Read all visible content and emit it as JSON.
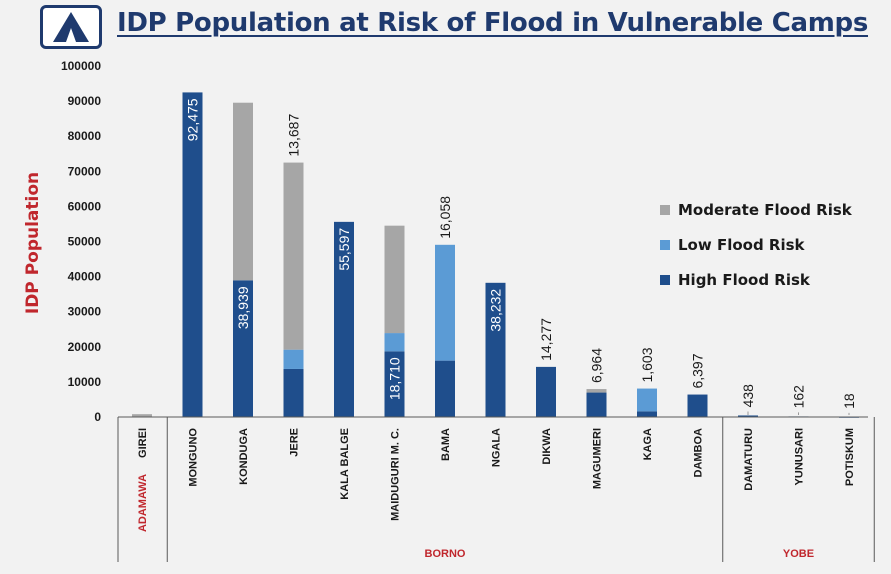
{
  "header": {
    "title": "IDP Population at Risk of Flood in Vulnerable Camps",
    "logo_icon": "tent-icon"
  },
  "chart_data": {
    "type": "bar",
    "stacked": true,
    "title": "IDP Population at Risk of Flood in Vulnerable Camps",
    "ylabel": "IDP Population",
    "xlabel": "",
    "ylim": [
      0,
      100000
    ],
    "yticks": [
      "0",
      "10000",
      "20000",
      "30000",
      "40000",
      "50000",
      "60000",
      "70000",
      "80000",
      "90000",
      "100000"
    ],
    "grid": false,
    "legend_position": "right",
    "categories": [
      "GIREI",
      "MONGUNO",
      "KONDUGA",
      "JERE",
      "KALA BALGE",
      "MAIDUGURI M. C.",
      "BAMA",
      "NGALA",
      "DIKWA",
      "MAGUMERI",
      "KAGA",
      "DAMBOA",
      "DAMATURU",
      "YUNUSARI",
      "POTISKUM"
    ],
    "series": [
      {
        "name": "High Flood Risk",
        "color": "#1f4e8c",
        "values": [
          0,
          92475,
          38939,
          13687,
          55597,
          18710,
          16058,
          38232,
          14277,
          6964,
          1603,
          6397,
          438,
          162,
          18
        ]
      },
      {
        "name": "Low Flood Risk",
        "color": "#5b9bd5",
        "values": [
          0,
          0,
          0,
          5500,
          0,
          5200,
          33000,
          0,
          0,
          0,
          6500,
          0,
          0,
          0,
          0
        ]
      },
      {
        "name": "Moderate Flood Risk",
        "color": "#a6a6a6",
        "values": [
          800,
          0,
          50600,
          53300,
          0,
          30600,
          0,
          0,
          0,
          1000,
          0,
          0,
          0,
          0,
          0
        ]
      }
    ],
    "data_labels": [
      "",
      "92,475",
      "38,939",
      "13,687",
      "55,597",
      "18,710",
      "16,058",
      "38,232",
      "14,277",
      "6,964",
      "1,603",
      "6,397",
      "438",
      "162",
      "18"
    ],
    "groups": [
      {
        "name": "ADAMAWA",
        "start": 0,
        "end": 0
      },
      {
        "name": "BORNO",
        "start": 1,
        "end": 11
      },
      {
        "name": "YOBE",
        "start": 12,
        "end": 14
      }
    ]
  }
}
